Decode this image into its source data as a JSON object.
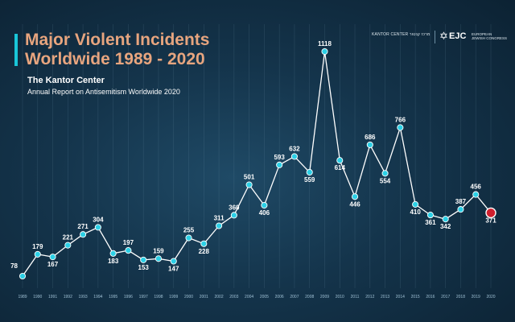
{
  "header": {
    "title_line1": "Major Violent Incidents",
    "title_line2": "Worldwide 1989 - 2020",
    "subtitle": "The Kantor Center",
    "subtitle2": "Annual Report on Antisemitism Worldwide 2020"
  },
  "logos": {
    "kantor": "KANTOR CENTER",
    "kantor_hebrew": "מרכז קנטור",
    "ejc": "EJC",
    "ejc_sub1": "EUROPEAN",
    "ejc_sub2": "JEWISH CONGRESS"
  },
  "colors": {
    "title": "#e8a57e",
    "accent": "#19c6d8",
    "point": "#2cd0e6",
    "highlight_point": "#d01f2e",
    "line": "#ffffff"
  },
  "chart_data": {
    "type": "line",
    "title": "Major Violent Incidents Worldwide 1989 - 2020",
    "x": [
      "1989",
      "1990",
      "1991",
      "1992",
      "1993",
      "1994",
      "1995",
      "1996",
      "1997",
      "1998",
      "1999",
      "2000",
      "2001",
      "2002",
      "2003",
      "2004",
      "2005",
      "2006",
      "2007",
      "2008",
      "2009",
      "2010",
      "2011",
      "2012",
      "2013",
      "2014",
      "2015",
      "2016",
      "2017",
      "2018",
      "2019",
      "2020"
    ],
    "series": [
      {
        "values": [
          78,
          179,
          167,
          221,
          271,
          304,
          183,
          197,
          153,
          159,
          147,
          255,
          228,
          311,
          360,
          501,
          406,
          593,
          632,
          559,
          1118,
          614,
          446,
          686,
          554,
          766,
          410,
          361,
          342,
          387,
          456,
          371
        ]
      }
    ],
    "highlight_last": true,
    "grid": "vertical",
    "legend": "none"
  }
}
